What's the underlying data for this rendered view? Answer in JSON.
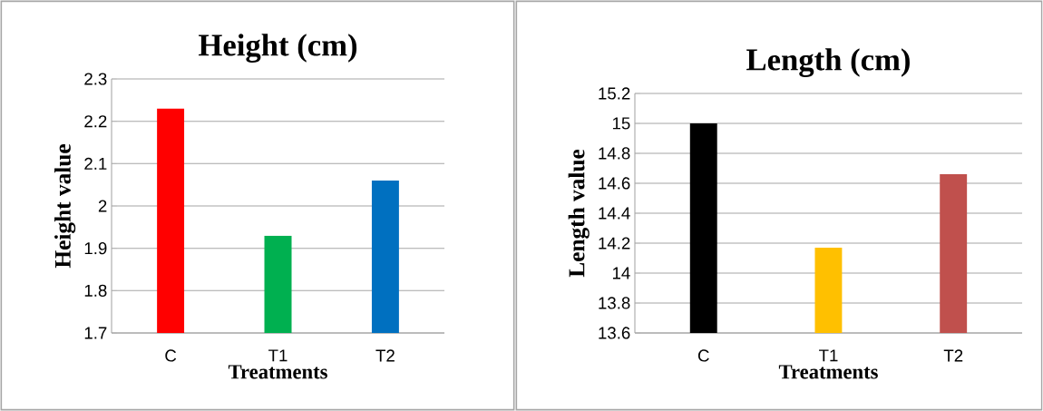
{
  "chart_data": [
    {
      "type": "bar",
      "title": "Height (cm)",
      "ylabel": "Height value",
      "xlabel": "Treatments",
      "categories": [
        "C",
        "T1",
        "T2"
      ],
      "values": [
        2.23,
        1.93,
        2.06
      ],
      "colors": [
        "#ff0000",
        "#00b050",
        "#0070c0"
      ],
      "ylim": [
        1.7,
        2.3
      ],
      "yticks": [
        1.7,
        1.8,
        1.9,
        2,
        2.1,
        2.2,
        2.3
      ],
      "grid": "y"
    },
    {
      "type": "bar",
      "title": "Length (cm)",
      "ylabel": "Length value",
      "xlabel": "Treatments",
      "categories": [
        "C",
        "T1",
        "T2"
      ],
      "values": [
        15.0,
        14.17,
        14.66
      ],
      "colors": [
        "#000000",
        "#ffc000",
        "#c0504d"
      ],
      "ylim": [
        13.6,
        15.2
      ],
      "yticks": [
        13.6,
        13.8,
        14,
        14.2,
        14.4,
        14.6,
        14.8,
        15,
        15.2
      ],
      "grid": "y"
    }
  ]
}
